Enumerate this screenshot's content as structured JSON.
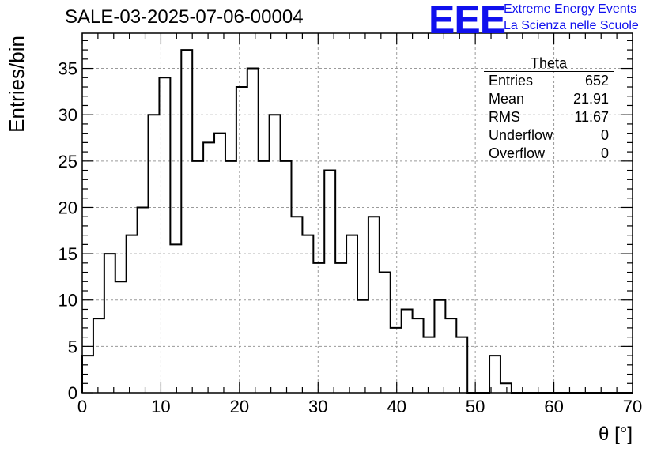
{
  "header": {
    "title": "SALE-03-2025-07-06-00004",
    "logo_text": "EEE",
    "logo_line1": "Extreme Energy Events",
    "logo_line2": "La Scienza nelle Scuole",
    "logo_color": "#1010ee"
  },
  "stats_box": {
    "name": "Theta",
    "rows": [
      {
        "label": "Entries",
        "value": "652"
      },
      {
        "label": "Mean",
        "value": "21.91"
      },
      {
        "label": "RMS",
        "value": "11.67"
      },
      {
        "label": "Underflow",
        "value": "0"
      },
      {
        "label": "Overflow",
        "value": "0"
      }
    ]
  },
  "chart_data": {
    "type": "bar",
    "histogram": true,
    "title": "SALE-03-2025-07-06-00004",
    "xlabel": "θ [°]",
    "ylabel": "Entries/bin",
    "xlim": [
      0,
      70
    ],
    "ylim": [
      0,
      38.8
    ],
    "x_ticks": [
      0,
      10,
      20,
      30,
      40,
      50,
      60,
      70
    ],
    "y_ticks": [
      0,
      5,
      10,
      15,
      20,
      25,
      30,
      35
    ],
    "grid": true,
    "bin_width": 1.4,
    "bin_start": 0,
    "values": [
      4,
      8,
      15,
      12,
      17,
      20,
      30,
      34,
      16,
      37,
      25,
      27,
      28,
      25,
      33,
      35,
      25,
      30,
      25,
      19,
      17,
      14,
      24,
      14,
      17,
      10,
      19,
      13,
      7,
      9,
      8,
      6,
      10,
      8,
      6,
      0,
      0,
      4,
      1,
      0,
      0,
      0,
      0,
      0,
      0,
      0,
      0,
      0,
      0,
      0
    ]
  }
}
